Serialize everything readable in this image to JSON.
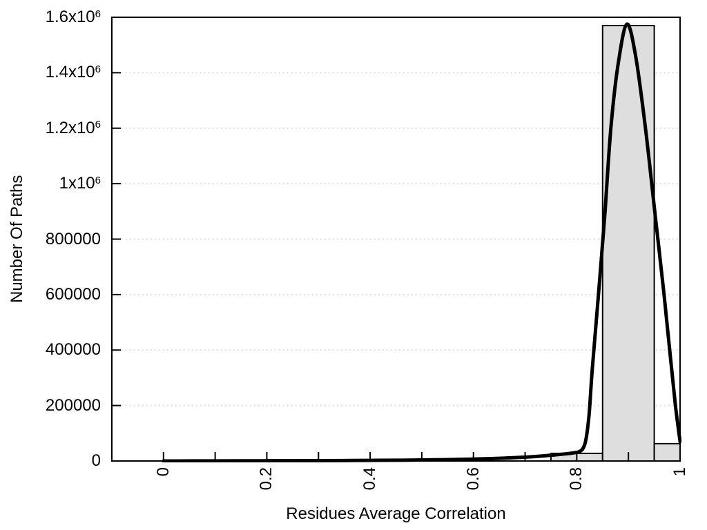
{
  "chart_data": {
    "type": "bar",
    "subtype": "histogram-with-fit-curve",
    "title": "",
    "xlabel": "Residues Average Correlation",
    "ylabel": "Number Of Paths",
    "xlim": [
      -0.1,
      1.0
    ],
    "ylim": [
      0,
      1600000
    ],
    "grid": {
      "horizontal": true,
      "vertical": false,
      "style": "dotted",
      "color": "#c8c8c8"
    },
    "legend_position": "none",
    "x_ticks_all": [
      0,
      0.1,
      0.2,
      0.3,
      0.4,
      0.5,
      0.6,
      0.7,
      0.8,
      0.9,
      1.0
    ],
    "x_major_ticks": [
      {
        "value": 0,
        "label": "0"
      },
      {
        "value": 0.2,
        "label": "0.2"
      },
      {
        "value": 0.4,
        "label": "0.4"
      },
      {
        "value": 0.6,
        "label": "0.6"
      },
      {
        "value": 0.8,
        "label": "0.8"
      },
      {
        "value": 1,
        "label": "1"
      }
    ],
    "y_ticks": [
      {
        "value": 0,
        "label": "0"
      },
      {
        "value": 200000,
        "label": "200000"
      },
      {
        "value": 400000,
        "label": "400000"
      },
      {
        "value": 600000,
        "label": "600000"
      },
      {
        "value": 800000,
        "label": "800000"
      },
      {
        "value": 1000000,
        "label": "1x10^6"
      },
      {
        "value": 1200000,
        "label": "1.2x10^6"
      },
      {
        "value": 1400000,
        "label": "1.4x10^6"
      },
      {
        "value": 1600000,
        "label": "1.6x10^6"
      }
    ],
    "bars": [
      {
        "bin_start": 0.75,
        "bin_end": 0.85,
        "count": 27500
      },
      {
        "bin_start": 0.85,
        "bin_end": 0.95,
        "count": 1570000
      },
      {
        "bin_start": 0.95,
        "bin_end": 1.0,
        "count": 62500
      }
    ],
    "curve": {
      "name": "fit-curve",
      "points": [
        [
          0.0,
          0
        ],
        [
          0.05,
          200
        ],
        [
          0.1,
          400
        ],
        [
          0.15,
          600
        ],
        [
          0.2,
          800
        ],
        [
          0.25,
          1000
        ],
        [
          0.3,
          1300
        ],
        [
          0.35,
          1700
        ],
        [
          0.4,
          2200
        ],
        [
          0.45,
          2800
        ],
        [
          0.5,
          3600
        ],
        [
          0.55,
          5000
        ],
        [
          0.6,
          7000
        ],
        [
          0.64,
          9000
        ],
        [
          0.68,
          12000
        ],
        [
          0.71,
          15000
        ],
        [
          0.74,
          19000
        ],
        [
          0.76,
          22500
        ],
        [
          0.78,
          26000
        ],
        [
          0.795,
          29500
        ],
        [
          0.805,
          34000
        ],
        [
          0.812,
          45000
        ],
        [
          0.818,
          80000
        ],
        [
          0.824,
          170000
        ],
        [
          0.83,
          330000
        ],
        [
          0.842,
          600000
        ],
        [
          0.854,
          880000
        ],
        [
          0.866,
          1200000
        ],
        [
          0.88,
          1430000
        ],
        [
          0.897,
          1575000
        ],
        [
          0.914,
          1460000
        ],
        [
          0.933,
          1200000
        ],
        [
          0.951,
          900000
        ],
        [
          0.969,
          600000
        ],
        [
          0.981,
          380000
        ],
        [
          0.991,
          200000
        ],
        [
          1.0,
          70000
        ]
      ]
    },
    "colors": {
      "bar_fill": "#dedede",
      "bar_stroke": "#000000",
      "curve": "#000000",
      "axis": "#000000",
      "text": "#000000",
      "background": "#ffffff"
    }
  }
}
